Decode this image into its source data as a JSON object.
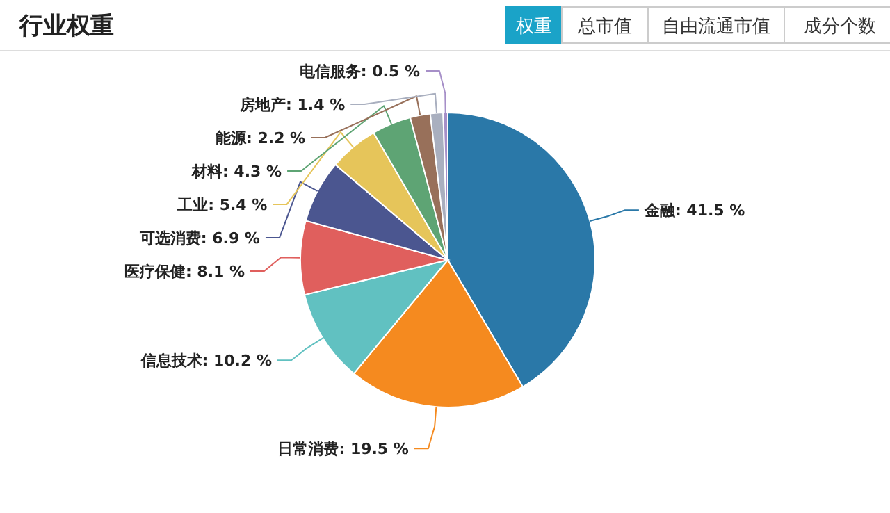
{
  "chart_data": {
    "type": "pie",
    "title": "行业权重",
    "annotations": [
      "权重",
      "总市值",
      "自由流通市值",
      "成分个数"
    ],
    "categories": [
      "金融",
      "日常消费",
      "信息技术",
      "医疗保健",
      "可选消费",
      "工业",
      "材料",
      "能源",
      "房地产",
      "电信服务"
    ],
    "values": [
      41.5,
      19.5,
      10.2,
      8.1,
      6.9,
      5.4,
      4.3,
      2.2,
      1.4,
      0.5
    ],
    "value_labels": [
      "41.5 %",
      "19.5 %",
      "10.2 %",
      "8.1 %",
      "6.9 %",
      "5.4 %",
      "4.3 %",
      "2.2 %",
      "1.4 %",
      "0.5 %"
    ],
    "colors": [
      "#2a78a8",
      "#f58a1f",
      "#61c1c1",
      "#e05f5d",
      "#4b5690",
      "#e6c55a",
      "#5ea474",
      "#98705a",
      "#a9afbf",
      "#a68fc8"
    ]
  }
}
